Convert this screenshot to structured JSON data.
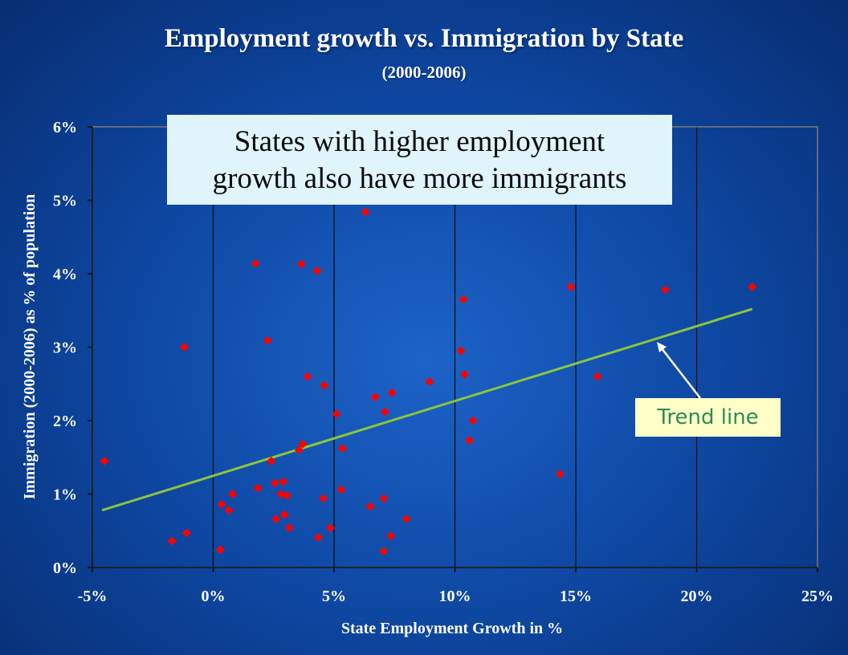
{
  "chart_data": {
    "type": "scatter",
    "title": "Employment growth vs. Immigration by State",
    "subtitle": "(2000-2006)",
    "xlabel": "State Employment Growth in %",
    "ylabel": "Immigration (2000-2006) as % of population",
    "xlim": [
      -5,
      25
    ],
    "ylim": [
      0,
      6
    ],
    "x_ticks": [
      {
        "value": -5,
        "label": "-5%"
      },
      {
        "value": 0,
        "label": "0%"
      },
      {
        "value": 5,
        "label": "5%"
      },
      {
        "value": 10,
        "label": "10%"
      },
      {
        "value": 15,
        "label": "15%"
      },
      {
        "value": 20,
        "label": "20%"
      },
      {
        "value": 25,
        "label": "25%"
      }
    ],
    "y_ticks": [
      {
        "value": 0,
        "label": "0%"
      },
      {
        "value": 1,
        "label": "1%"
      },
      {
        "value": 2,
        "label": "2%"
      },
      {
        "value": 3,
        "label": "3%"
      },
      {
        "value": 4,
        "label": "4%"
      },
      {
        "value": 5,
        "label": "5%"
      },
      {
        "value": 6,
        "label": "6%"
      }
    ],
    "grid": "vertical",
    "point_color": "#ff0000",
    "trend_color": "#8bc53f",
    "points": [
      {
        "x": -4.5,
        "y": 1.45
      },
      {
        "x": -1.7,
        "y": 0.36
      },
      {
        "x": -1.1,
        "y": 0.47
      },
      {
        "x": -1.2,
        "y": 3.0
      },
      {
        "x": 0.3,
        "y": 0.24
      },
      {
        "x": 0.35,
        "y": 0.86
      },
      {
        "x": 0.65,
        "y": 0.78
      },
      {
        "x": 0.8,
        "y": 1.0
      },
      {
        "x": 1.75,
        "y": 4.14
      },
      {
        "x": 1.85,
        "y": 1.08
      },
      {
        "x": 2.25,
        "y": 3.09
      },
      {
        "x": 2.4,
        "y": 1.45
      },
      {
        "x": 2.55,
        "y": 1.15
      },
      {
        "x": 2.6,
        "y": 0.66
      },
      {
        "x": 2.8,
        "y": 1.0
      },
      {
        "x": 2.9,
        "y": 1.17
      },
      {
        "x": 2.95,
        "y": 0.72
      },
      {
        "x": 3.05,
        "y": 0.98
      },
      {
        "x": 3.15,
        "y": 0.54
      },
      {
        "x": 3.55,
        "y": 1.6
      },
      {
        "x": 3.7,
        "y": 1.68
      },
      {
        "x": 3.65,
        "y": 4.13
      },
      {
        "x": 3.9,
        "y": 2.6
      },
      {
        "x": 4.3,
        "y": 4.04
      },
      {
        "x": 4.35,
        "y": 0.41
      },
      {
        "x": 4.55,
        "y": 0.94
      },
      {
        "x": 4.6,
        "y": 2.48
      },
      {
        "x": 4.85,
        "y": 0.54
      },
      {
        "x": 5.1,
        "y": 2.09
      },
      {
        "x": 5.3,
        "y": 1.06
      },
      {
        "x": 5.35,
        "y": 1.62
      },
      {
        "x": 6.3,
        "y": 4.84
      },
      {
        "x": 6.5,
        "y": 0.83
      },
      {
        "x": 6.7,
        "y": 2.32
      },
      {
        "x": 7.05,
        "y": 0.22
      },
      {
        "x": 7.05,
        "y": 0.94
      },
      {
        "x": 7.1,
        "y": 2.12
      },
      {
        "x": 7.35,
        "y": 0.43
      },
      {
        "x": 7.4,
        "y": 2.38
      },
      {
        "x": 8.0,
        "y": 0.66
      },
      {
        "x": 8.95,
        "y": 2.53
      },
      {
        "x": 10.25,
        "y": 2.95
      },
      {
        "x": 10.35,
        "y": 3.65
      },
      {
        "x": 10.4,
        "y": 2.63
      },
      {
        "x": 10.6,
        "y": 1.73
      },
      {
        "x": 10.75,
        "y": 2.0
      },
      {
        "x": 14.35,
        "y": 1.27
      },
      {
        "x": 14.8,
        "y": 3.82
      },
      {
        "x": 15.9,
        "y": 2.6
      },
      {
        "x": 18.7,
        "y": 3.78
      },
      {
        "x": 22.3,
        "y": 3.82
      }
    ],
    "trend_line": {
      "x": [
        -4.6,
        22.3
      ],
      "y": [
        0.78,
        3.52
      ]
    },
    "annotations": [
      "States with higher employment growth also have more immigrants",
      "Trend line"
    ]
  },
  "callout": {
    "line1": "States with higher employment",
    "line2": "growth also have more immigrants"
  },
  "trend_label": "Trend line"
}
